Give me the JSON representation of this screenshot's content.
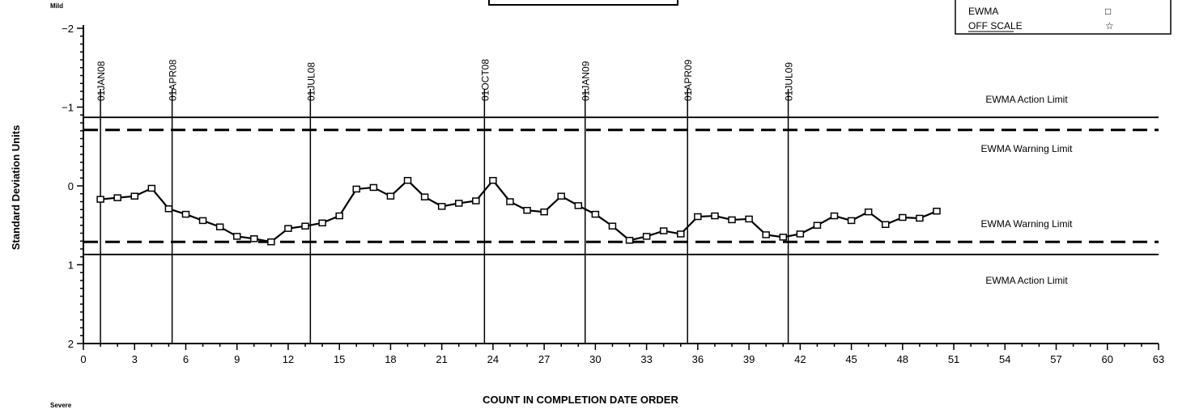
{
  "chart_data": {
    "type": "line",
    "xlabel": "COUNT IN COMPLETION DATE ORDER",
    "ylabel": "Standard Deviation Units",
    "y_top_label": "Mild",
    "y_bottom_label": "Severe",
    "xlim": [
      0,
      63
    ],
    "ylim": [
      2,
      -2
    ],
    "y_reversed": true,
    "x_ticks": [
      0,
      3,
      6,
      9,
      12,
      15,
      18,
      21,
      24,
      27,
      30,
      33,
      36,
      39,
      42,
      45,
      48,
      51,
      54,
      57,
      60,
      63
    ],
    "y_ticks": [
      -2,
      -1,
      0,
      1,
      2
    ],
    "grid": false,
    "legend_position": "top-right",
    "legend": [
      {
        "label": "EWMA",
        "symbol": "□"
      },
      {
        "label": "OFF SCALE",
        "symbol": "☆"
      }
    ],
    "series": [
      {
        "name": "EWMA",
        "x": [
          1,
          2,
          3,
          4,
          5,
          6,
          7,
          8,
          9,
          10,
          11,
          12,
          13,
          14,
          15,
          16,
          17,
          18,
          19,
          20,
          21,
          22,
          23,
          24,
          25,
          26,
          27,
          28,
          29,
          30,
          31,
          32,
          33,
          34,
          35,
          36,
          37,
          38,
          39,
          40,
          41,
          42,
          43,
          44,
          45,
          46,
          47,
          48,
          49,
          50
        ],
        "y": [
          0.17,
          0.15,
          0.13,
          0.03,
          0.29,
          0.36,
          0.44,
          0.52,
          0.64,
          0.67,
          0.71,
          0.54,
          0.51,
          0.47,
          0.38,
          0.04,
          0.02,
          0.13,
          -0.07,
          0.14,
          0.26,
          0.22,
          0.19,
          -0.07,
          0.2,
          0.31,
          0.33,
          0.13,
          0.25,
          0.36,
          0.51,
          0.69,
          0.64,
          0.57,
          0.61,
          0.39,
          0.38,
          0.43,
          0.42,
          0.62,
          0.65,
          0.61,
          0.5,
          0.38,
          0.44,
          0.33,
          0.49,
          0.4,
          0.41,
          0.32
        ]
      }
    ],
    "limits": [
      {
        "label": "EWMA Action Limit",
        "y": -0.87,
        "style": "solid"
      },
      {
        "label": "EWMA Warning Limit",
        "y": -0.71,
        "style": "dashed"
      },
      {
        "label": "EWMA Warning Limit",
        "y": 0.71,
        "style": "dashed"
      },
      {
        "label": "EWMA Action Limit",
        "y": 0.87,
        "style": "solid"
      }
    ],
    "reference_lines": [
      {
        "label": "01JAN08",
        "x": 1
      },
      {
        "label": "01APR08",
        "x": 5.2
      },
      {
        "label": "01JUL08",
        "x": 13.3
      },
      {
        "label": "01OCT08",
        "x": 23.5
      },
      {
        "label": "01JAN09",
        "x": 29.4
      },
      {
        "label": "01APR09",
        "x": 35.4
      },
      {
        "label": "01JUL09",
        "x": 41.3
      }
    ]
  }
}
